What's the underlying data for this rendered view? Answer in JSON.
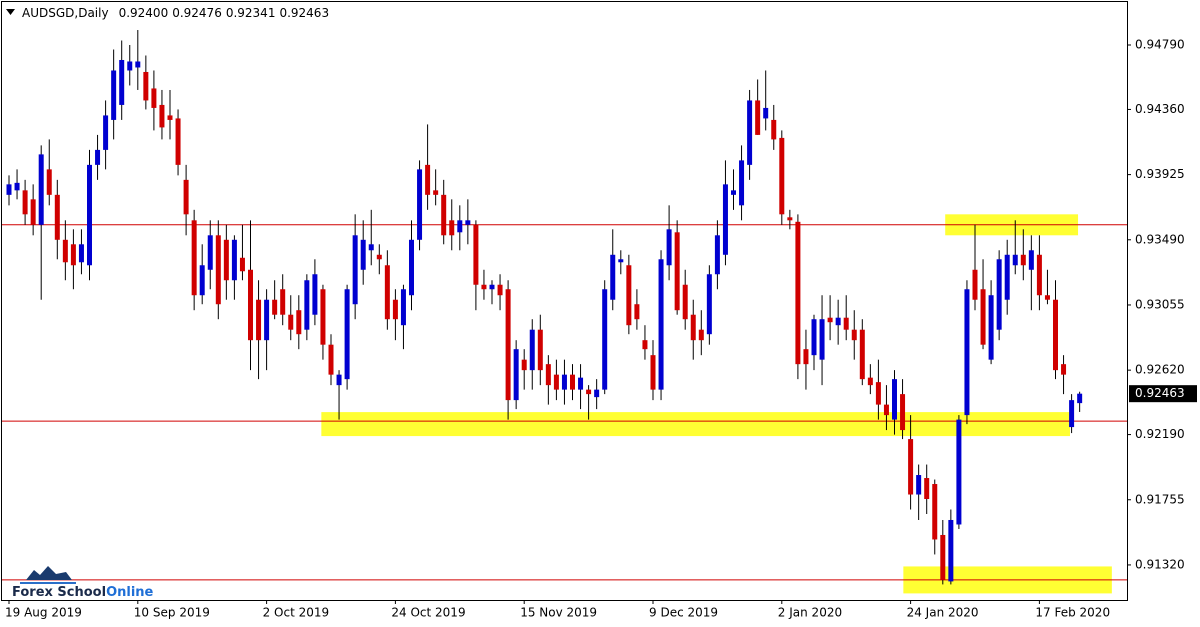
{
  "chart_data": {
    "type": "candlestick",
    "symbol": "AUDSGD,Daily",
    "last_bar_labels": [
      "0.92400",
      "0.92476",
      "0.92341",
      "0.92463"
    ],
    "watermark": [
      "Forex School",
      "Online"
    ],
    "categories": [
      "19 Aug 2019",
      null,
      null,
      null,
      null,
      null,
      null,
      null,
      null,
      null,
      null,
      null,
      null,
      null,
      null,
      null,
      "10 Sep 2019",
      null,
      null,
      null,
      null,
      null,
      null,
      null,
      null,
      null,
      null,
      null,
      null,
      null,
      null,
      null,
      "2 Oct 2019",
      null,
      null,
      null,
      null,
      null,
      null,
      null,
      null,
      null,
      null,
      null,
      null,
      null,
      null,
      null,
      "24 Oct 2019",
      null,
      null,
      null,
      null,
      null,
      null,
      null,
      null,
      null,
      null,
      null,
      null,
      null,
      null,
      null,
      "15 Nov 2019",
      null,
      null,
      null,
      null,
      null,
      null,
      null,
      null,
      null,
      null,
      null,
      null,
      null,
      null,
      null,
      "9 Dec 2019",
      null,
      null,
      null,
      null,
      null,
      null,
      null,
      null,
      null,
      null,
      null,
      null,
      null,
      null,
      null,
      "2 Jan 2020",
      null,
      null,
      null,
      null,
      null,
      null,
      null,
      null,
      null,
      null,
      null,
      null,
      null,
      null,
      null,
      "24 Jan 2020",
      null,
      null,
      null,
      null,
      null,
      null,
      null,
      null,
      null,
      null,
      null,
      null,
      null,
      null,
      null,
      "17 Feb 2020",
      null,
      null,
      null,
      null,
      null
    ],
    "open": [
      0.9379,
      0.9382,
      0.9382,
      0.9376,
      0.9359,
      0.9396,
      0.9379,
      0.9349,
      0.9346,
      0.9334,
      0.9332,
      0.9399,
      0.9409,
      0.9429,
      0.9439,
      0.9462,
      0.9464,
      0.9461,
      0.945,
      0.9439,
      0.9432,
      0.943,
      0.9389,
      0.9362,
      0.9312,
      0.9329,
      0.9352,
      0.9349,
      0.9322,
      0.9337,
      0.9329,
      0.9309,
      0.9282,
      0.9309,
      0.9316,
      0.9299,
      0.9302,
      0.9289,
      0.9299,
      0.9316,
      0.9279,
      0.9252,
      0.9256,
      0.9306,
      0.9329,
      0.9342,
      0.9339,
      0.9332,
      0.9309,
      0.9292,
      0.9312,
      0.9349,
      0.9399,
      0.9382,
      0.9379,
      0.9362,
      0.9354,
      0.9359,
      0.9359,
      0.9319,
      0.9316,
      0.9319,
      0.9316,
      0.9242,
      0.9269,
      0.9262,
      0.9289,
      0.9266,
      0.9259,
      0.9249,
      0.9259,
      0.9249,
      0.9249,
      0.9244,
      0.9249,
      0.9309,
      0.9334,
      0.9332,
      0.9306,
      0.9282,
      0.9272,
      0.9249,
      0.9332,
      0.9354,
      0.9319,
      0.9299,
      0.9289,
      0.9286,
      0.9326,
      0.9339,
      0.9379,
      0.9372,
      0.9399,
      0.9442,
      0.943,
      0.9429,
      0.9417,
      0.9364,
      0.9361,
      0.9276,
      0.9272,
      0.9269,
      0.9297,
      0.9292,
      0.9297,
      0.9289,
      0.9289,
      0.9257,
      0.9254,
      0.9239,
      0.9229,
      0.9246,
      0.9216,
      0.9179,
      0.919,
      0.9186,
      0.9152,
      0.9121,
      0.9159,
      0.9232,
      0.9329,
      0.9316,
      0.9269,
      0.9289,
      0.9309,
      0.9332,
      0.9339,
      0.9329,
      0.9339,
      0.9312,
      0.9309,
      0.9266,
      0.9224,
      0.924
    ],
    "high": [
      0.9392,
      0.9396,
      0.9389,
      0.9386,
      0.9412,
      0.9416,
      0.9389,
      0.9362,
      0.9356,
      0.9356,
      0.9409,
      0.9419,
      0.9442,
      0.9476,
      0.9482,
      0.9479,
      0.9489,
      0.9472,
      0.9462,
      0.9449,
      0.9449,
      0.9436,
      0.9399,
      0.9369,
      0.9346,
      0.9362,
      0.9362,
      0.9359,
      0.9352,
      0.9359,
      0.9362,
      0.9322,
      0.9316,
      0.9322,
      0.9326,
      0.9312,
      0.9312,
      0.9326,
      0.9336,
      0.9319,
      0.9286,
      0.9262,
      0.9319,
      0.9366,
      0.9362,
      0.9369,
      0.9346,
      0.9342,
      0.9316,
      0.9319,
      0.9362,
      0.9402,
      0.9426,
      0.9396,
      0.9389,
      0.9376,
      0.9372,
      0.9376,
      0.9362,
      0.9329,
      0.9322,
      0.9326,
      0.9322,
      0.9282,
      0.9276,
      0.9296,
      0.9299,
      0.9272,
      0.9269,
      0.9269,
      0.9266,
      0.9266,
      0.9252,
      0.9256,
      0.9322,
      0.9356,
      0.9342,
      0.9339,
      0.9316,
      0.9292,
      0.9282,
      0.9342,
      0.9372,
      0.9362,
      0.9329,
      0.9309,
      0.9302,
      0.9332,
      0.9362,
      0.9402,
      0.9396,
      0.9412,
      0.9449,
      0.9456,
      0.9462,
      0.9439,
      0.9422,
      0.9369,
      0.9366,
      0.9289,
      0.9299,
      0.9312,
      0.9312,
      0.9309,
      0.9312,
      0.9302,
      0.9296,
      0.9266,
      0.9269,
      0.9252,
      0.9262,
      0.9256,
      0.9232,
      0.9199,
      0.9199,
      0.9189,
      0.9162,
      0.9169,
      0.9232,
      0.9322,
      0.9359,
      0.9336,
      0.9322,
      0.9342,
      0.9349,
      0.9362,
      0.9356,
      0.9352,
      0.9352,
      0.9329,
      0.9322,
      0.9272,
      0.9246,
      0.92476
    ],
    "low": [
      0.9372,
      0.9376,
      0.9359,
      0.9352,
      0.9309,
      0.9372,
      0.9336,
      0.9322,
      0.9316,
      0.9326,
      0.9322,
      0.9389,
      0.9396,
      0.9416,
      0.9429,
      0.9452,
      0.9449,
      0.9436,
      0.9422,
      0.9416,
      0.9416,
      0.9392,
      0.9352,
      0.9302,
      0.9306,
      0.9316,
      0.9296,
      0.9309,
      0.9309,
      0.9322,
      0.9262,
      0.9256,
      0.9262,
      0.9296,
      0.9292,
      0.9282,
      0.9276,
      0.9282,
      0.9292,
      0.9269,
      0.9252,
      0.9229,
      0.9249,
      0.9296,
      0.9319,
      0.9332,
      0.9326,
      0.9289,
      0.9282,
      0.9276,
      0.9302,
      0.9342,
      0.9369,
      0.9372,
      0.9346,
      0.9342,
      0.9342,
      0.9346,
      0.9302,
      0.9309,
      0.9306,
      0.9302,
      0.9229,
      0.9236,
      0.9249,
      0.9249,
      0.9252,
      0.9239,
      0.9242,
      0.9239,
      0.9242,
      0.9236,
      0.9229,
      0.9236,
      0.9246,
      0.9302,
      0.9326,
      0.9286,
      0.9289,
      0.9269,
      0.9242,
      0.9242,
      0.9322,
      0.9299,
      0.9289,
      0.9269,
      0.9272,
      0.9279,
      0.9316,
      0.9332,
      0.9369,
      0.9362,
      0.9389,
      0.9419,
      0.9422,
      0.9409,
      0.9359,
      0.9356,
      0.9256,
      0.9249,
      0.9262,
      0.9252,
      0.9282,
      0.9279,
      0.9282,
      0.9269,
      0.9252,
      0.9246,
      0.9229,
      0.9222,
      0.9219,
      0.9216,
      0.9169,
      0.9162,
      0.9166,
      0.9139,
      0.9119,
      0.9119,
      0.9156,
      0.9226,
      0.9302,
      0.9276,
      0.9266,
      0.9282,
      0.9299,
      0.9326,
      0.9322,
      0.9302,
      0.9302,
      0.9306,
      0.9256,
      0.9246,
      0.922,
      0.92341
    ],
    "close": [
      0.9386,
      0.9387,
      0.9366,
      0.9359,
      0.9406,
      0.9379,
      0.9349,
      0.9334,
      0.9332,
      0.9346,
      0.9399,
      0.9409,
      0.9432,
      0.9462,
      0.9469,
      0.9468,
      0.9468,
      0.9442,
      0.9437,
      0.9424,
      0.9429,
      0.9399,
      0.9366,
      0.9312,
      0.9332,
      0.9352,
      0.9306,
      0.9322,
      0.9349,
      0.9328,
      0.9282,
      0.9282,
      0.9309,
      0.9299,
      0.9299,
      0.9289,
      0.9286,
      0.9322,
      0.9326,
      0.9279,
      0.9259,
      0.9259,
      0.9316,
      0.9352,
      0.9349,
      0.9346,
      0.9336,
      0.9296,
      0.9296,
      0.9316,
      0.9349,
      0.9396,
      0.9379,
      0.9379,
      0.9352,
      0.9352,
      0.9362,
      0.9362,
      0.9319,
      0.9316,
      0.9319,
      0.9312,
      0.9242,
      0.9276,
      0.9262,
      0.9289,
      0.9262,
      0.9252,
      0.9249,
      0.9259,
      0.9249,
      0.9257,
      0.9246,
      0.9249,
      0.9316,
      0.9339,
      0.9336,
      0.9292,
      0.9296,
      0.9276,
      0.9249,
      0.9336,
      0.9356,
      0.9302,
      0.9296,
      0.9282,
      0.9282,
      0.9326,
      0.9352,
      0.9386,
      0.9382,
      0.9402,
      0.9442,
      0.9419,
      0.9437,
      0.9416,
      0.9366,
      0.9362,
      0.9266,
      0.9266,
      0.9296,
      0.9296,
      0.9294,
      0.9297,
      0.9289,
      0.9282,
      0.9256,
      0.9252,
      0.9239,
      0.9232,
      0.9256,
      0.9222,
      0.9179,
      0.9192,
      0.9176,
      0.9149,
      0.9122,
      0.9162,
      0.9229,
      0.9316,
      0.9309,
      0.9279,
      0.9312,
      0.9336,
      0.9339,
      0.9339,
      0.9332,
      0.9342,
      0.9312,
      0.9309,
      0.9262,
      0.9259,
      0.9242,
      0.92463
    ],
    "up_color": "#0000d0",
    "down_color": "#d00000",
    "wick_color": "#000000",
    "ylim": [
      0.91086,
      0.95077
    ],
    "yticks": [
      {
        "value": 0.9479,
        "label": "0.94790"
      },
      {
        "value": 0.9436,
        "label": "0.94360"
      },
      0.93925,
      {
        "value": 0.9349,
        "label": "0.93490"
      },
      0.93055,
      {
        "value": 0.9262,
        "label": "0.92620"
      },
      {
        "value": 0.9219,
        "label": "0.92190"
      },
      0.91755,
      {
        "value": 0.9132,
        "label": "0.91320"
      }
    ],
    "hlines": {
      "color": "#d00000",
      "values": [
        0.9359,
        0.9228,
        0.9122
      ]
    },
    "zones": {
      "color": "#ffff33",
      "items": [
        {
          "x": [
            116.3,
            132.8
          ],
          "y": [
            0.9366,
            0.9352
          ]
        },
        {
          "x": [
            38.8,
            131.8
          ],
          "y": [
            0.9234,
            0.9218
          ]
        },
        {
          "x": [
            111.1,
            137.0
          ],
          "y": [
            0.9131,
            0.9113
          ]
        }
      ]
    }
  }
}
